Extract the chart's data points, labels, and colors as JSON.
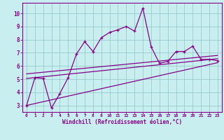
{
  "title": "",
  "xlabel": "Windchill (Refroidissement éolien,°C)",
  "ylabel": "",
  "xlim": [
    -0.5,
    23.5
  ],
  "ylim": [
    2.5,
    10.8
  ],
  "xticks": [
    0,
    1,
    2,
    3,
    4,
    5,
    6,
    7,
    8,
    9,
    10,
    11,
    12,
    13,
    14,
    15,
    16,
    17,
    18,
    19,
    20,
    21,
    22,
    23
  ],
  "yticks": [
    3,
    4,
    5,
    6,
    7,
    8,
    9,
    10
  ],
  "bg_color": "#c8eef0",
  "line_color": "#880088",
  "grid_color": "#99cccc",
  "series1_x": [
    0,
    1,
    2,
    3,
    4,
    5,
    6,
    7,
    8,
    9,
    10,
    11,
    12,
    13,
    14,
    15,
    16,
    17,
    18,
    19,
    20,
    21,
    22,
    23
  ],
  "series1_y": [
    3.0,
    5.1,
    5.05,
    2.8,
    3.9,
    5.1,
    6.9,
    7.85,
    7.1,
    8.15,
    8.55,
    8.75,
    9.0,
    8.65,
    10.4,
    7.45,
    6.2,
    6.35,
    7.1,
    7.1,
    7.5,
    6.5,
    6.5,
    6.4
  ],
  "series2_x": [
    0,
    23
  ],
  "series2_y": [
    5.05,
    6.55
  ],
  "series3_x": [
    0,
    23
  ],
  "series3_y": [
    5.4,
    6.8
  ],
  "series4_x": [
    0,
    23
  ],
  "series4_y": [
    3.0,
    6.25
  ]
}
